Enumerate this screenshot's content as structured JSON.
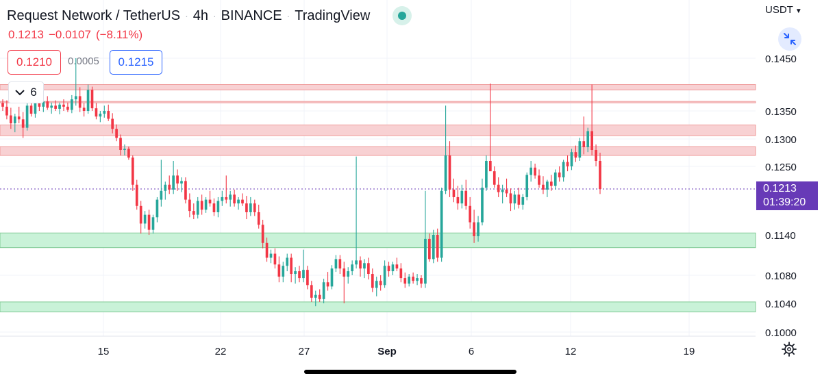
{
  "header": {
    "symbol": "Request Network / TetherUS",
    "interval": "4h",
    "exchange": "BINANCE",
    "source": "TradingView",
    "last": "0.1213",
    "change": "−0.0107",
    "change_pct": "(−8.11%)",
    "bid": "0.1210",
    "spread": "0.0005",
    "ask": "0.1215",
    "indicator_count": "6",
    "currency": "USDT"
  },
  "price_label": {
    "price": "0.1213",
    "countdown": "01:39:20"
  },
  "colors": {
    "up": "#26a69a",
    "down": "#f23645",
    "resistance_zone": "#f8d1d3",
    "support_zone": "#c9f2d8",
    "price_label": "#673ab7"
  },
  "chart_data": {
    "type": "candlestick",
    "y_axis_ticks": [
      "0.1450",
      "0.1350",
      "0.1300",
      "0.1250",
      "0.1140",
      "0.1080",
      "0.1040",
      "0.1000"
    ],
    "x_axis_ticks": [
      "15",
      "22",
      "27",
      "Sep",
      "6",
      "12",
      "19"
    ],
    "ylim": [
      0.1,
      0.145
    ],
    "last_price": 0.1213,
    "zones": [
      {
        "kind": "resistance",
        "low": 0.139,
        "high": 0.14
      },
      {
        "kind": "resistance",
        "low": 0.1366,
        "high": 0.1368
      },
      {
        "kind": "resistance",
        "low": 0.1306,
        "high": 0.1325
      },
      {
        "kind": "resistance",
        "low": 0.127,
        "high": 0.1286
      },
      {
        "kind": "support",
        "low": 0.1121,
        "high": 0.1143
      },
      {
        "kind": "support",
        "low": 0.1028,
        "high": 0.1042
      }
    ],
    "candles_ohlc": [
      [
        0.1365,
        0.1372,
        0.135,
        0.1358
      ],
      [
        0.1358,
        0.137,
        0.1335,
        0.1342
      ],
      [
        0.1342,
        0.1356,
        0.1318,
        0.1328
      ],
      [
        0.1328,
        0.1345,
        0.1312,
        0.134
      ],
      [
        0.134,
        0.1358,
        0.1328,
        0.1335
      ],
      [
        0.1335,
        0.1348,
        0.1302,
        0.132
      ],
      [
        0.132,
        0.1368,
        0.1315,
        0.136
      ],
      [
        0.136,
        0.1372,
        0.134,
        0.1345
      ],
      [
        0.1345,
        0.138,
        0.1338,
        0.1372
      ],
      [
        0.1372,
        0.138,
        0.135,
        0.1358
      ],
      [
        0.1358,
        0.1375,
        0.1348,
        0.1368
      ],
      [
        0.1368,
        0.1378,
        0.1352,
        0.1356
      ],
      [
        0.1356,
        0.1366,
        0.1345,
        0.136
      ],
      [
        0.136,
        0.137,
        0.135,
        0.1354
      ],
      [
        0.1354,
        0.1366,
        0.1344,
        0.1362
      ],
      [
        0.1362,
        0.1372,
        0.135,
        0.1358
      ],
      [
        0.1358,
        0.1366,
        0.1348,
        0.1352
      ],
      [
        0.1352,
        0.138,
        0.1346,
        0.1372
      ],
      [
        0.1372,
        0.145,
        0.136,
        0.1378
      ],
      [
        0.1378,
        0.1395,
        0.1348,
        0.1356
      ],
      [
        0.1356,
        0.1365,
        0.134,
        0.135
      ],
      [
        0.135,
        0.14,
        0.1345,
        0.139
      ],
      [
        0.139,
        0.1396,
        0.135,
        0.1355
      ],
      [
        0.1355,
        0.1365,
        0.1335,
        0.134
      ],
      [
        0.134,
        0.135,
        0.133,
        0.1345
      ],
      [
        0.1345,
        0.136,
        0.1338,
        0.135
      ],
      [
        0.135,
        0.1362,
        0.1332,
        0.1336
      ],
      [
        0.1336,
        0.1346,
        0.131,
        0.1318
      ],
      [
        0.1318,
        0.1326,
        0.1296,
        0.1302
      ],
      [
        0.1302,
        0.1308,
        0.127,
        0.128
      ],
      [
        0.128,
        0.129,
        0.127,
        0.1282
      ],
      [
        0.1282,
        0.1286,
        0.1262,
        0.1266
      ],
      [
        0.1266,
        0.127,
        0.121,
        0.122
      ],
      [
        0.122,
        0.1228,
        0.118,
        0.1186
      ],
      [
        0.1186,
        0.1194,
        0.1142,
        0.1158
      ],
      [
        0.1158,
        0.1178,
        0.115,
        0.1172
      ],
      [
        0.1172,
        0.118,
        0.114,
        0.1148
      ],
      [
        0.1148,
        0.1172,
        0.1142,
        0.1168
      ],
      [
        0.1168,
        0.12,
        0.116,
        0.1196
      ],
      [
        0.1196,
        0.1262,
        0.1185,
        0.121
      ],
      [
        0.121,
        0.1225,
        0.1196,
        0.122
      ],
      [
        0.122,
        0.1235,
        0.1205,
        0.1212
      ],
      [
        0.1212,
        0.126,
        0.1205,
        0.1235
      ],
      [
        0.1235,
        0.1245,
        0.121,
        0.1222
      ],
      [
        0.1222,
        0.1232,
        0.1208,
        0.1226
      ],
      [
        0.1226,
        0.1232,
        0.119,
        0.1196
      ],
      [
        0.1196,
        0.1206,
        0.1168,
        0.1178
      ],
      [
        0.1178,
        0.119,
        0.1165,
        0.1172
      ],
      [
        0.1172,
        0.12,
        0.1166,
        0.1194
      ],
      [
        0.1194,
        0.1204,
        0.1172,
        0.118
      ],
      [
        0.118,
        0.12,
        0.1175,
        0.1196
      ],
      [
        0.1196,
        0.121,
        0.1185,
        0.119
      ],
      [
        0.119,
        0.1198,
        0.117,
        0.1176
      ],
      [
        0.1176,
        0.12,
        0.1168,
        0.1194
      ],
      [
        0.1194,
        0.121,
        0.1186,
        0.12
      ],
      [
        0.12,
        0.1235,
        0.119,
        0.1196
      ],
      [
        0.1196,
        0.121,
        0.1185,
        0.1204
      ],
      [
        0.1204,
        0.1212,
        0.1185,
        0.119
      ],
      [
        0.119,
        0.12,
        0.118,
        0.1196
      ],
      [
        0.1196,
        0.1206,
        0.1186,
        0.119
      ],
      [
        0.119,
        0.1202,
        0.1165,
        0.1176
      ],
      [
        0.1176,
        0.12,
        0.117,
        0.119
      ],
      [
        0.119,
        0.1196,
        0.117,
        0.1176
      ],
      [
        0.1176,
        0.1188,
        0.115,
        0.1156
      ],
      [
        0.1156,
        0.1164,
        0.112,
        0.1128
      ],
      [
        0.1128,
        0.1136,
        0.11,
        0.1106
      ],
      [
        0.1106,
        0.1118,
        0.1098,
        0.1112
      ],
      [
        0.1112,
        0.112,
        0.109,
        0.1096
      ],
      [
        0.1096,
        0.1108,
        0.107,
        0.1078
      ],
      [
        0.1078,
        0.11,
        0.107,
        0.1094
      ],
      [
        0.1094,
        0.1112,
        0.1086,
        0.1106
      ],
      [
        0.1106,
        0.1112,
        0.107,
        0.1082
      ],
      [
        0.1082,
        0.1092,
        0.1068,
        0.1086
      ],
      [
        0.1086,
        0.1094,
        0.107,
        0.1076
      ],
      [
        0.1076,
        0.1118,
        0.107,
        0.1088
      ],
      [
        0.1088,
        0.1094,
        0.106,
        0.1066
      ],
      [
        0.1066,
        0.1072,
        0.1042,
        0.1048
      ],
      [
        0.1048,
        0.1058,
        0.1036,
        0.1052
      ],
      [
        0.1052,
        0.106,
        0.1042,
        0.1046
      ],
      [
        0.1046,
        0.1075,
        0.104,
        0.107
      ],
      [
        0.107,
        0.1085,
        0.1058,
        0.1064
      ],
      [
        0.1064,
        0.1095,
        0.106,
        0.109
      ],
      [
        0.109,
        0.111,
        0.1085,
        0.1104
      ],
      [
        0.1104,
        0.111,
        0.1082,
        0.109
      ],
      [
        0.109,
        0.11,
        0.104,
        0.1078
      ],
      [
        0.1078,
        0.1092,
        0.1068,
        0.1086
      ],
      [
        0.1086,
        0.1102,
        0.108,
        0.1096
      ],
      [
        0.1096,
        0.1268,
        0.109,
        0.1102
      ],
      [
        0.1102,
        0.1108,
        0.1078,
        0.109
      ],
      [
        0.109,
        0.1104,
        0.1076,
        0.1098
      ],
      [
        0.1098,
        0.1106,
        0.1074,
        0.1082
      ],
      [
        0.1082,
        0.109,
        0.1056,
        0.1062
      ],
      [
        0.1062,
        0.1078,
        0.105,
        0.1072
      ],
      [
        0.1072,
        0.108,
        0.1058,
        0.1066
      ],
      [
        0.1066,
        0.1102,
        0.1062,
        0.1094
      ],
      [
        0.1094,
        0.11,
        0.1078,
        0.1086
      ],
      [
        0.1086,
        0.11,
        0.108,
        0.1096
      ],
      [
        0.1096,
        0.1106,
        0.1086,
        0.109
      ],
      [
        0.109,
        0.1098,
        0.107,
        0.1076
      ],
      [
        0.1076,
        0.1084,
        0.1062,
        0.1068
      ],
      [
        0.1068,
        0.1082,
        0.1064,
        0.1078
      ],
      [
        0.1078,
        0.1084,
        0.1068,
        0.1072
      ],
      [
        0.1072,
        0.1082,
        0.1066,
        0.1076
      ],
      [
        0.1076,
        0.108,
        0.1062,
        0.1068
      ],
      [
        0.1068,
        0.121,
        0.1062,
        0.1134
      ],
      [
        0.1134,
        0.1142,
        0.11,
        0.1104
      ],
      [
        0.1104,
        0.1148,
        0.1098,
        0.114
      ],
      [
        0.114,
        0.115,
        0.11,
        0.1106
      ],
      [
        0.1106,
        0.1215,
        0.11,
        0.121
      ],
      [
        0.121,
        0.136,
        0.1205,
        0.127
      ],
      [
        0.127,
        0.1296,
        0.12,
        0.1212
      ],
      [
        0.1212,
        0.123,
        0.1192,
        0.12
      ],
      [
        0.12,
        0.1218,
        0.118,
        0.119
      ],
      [
        0.119,
        0.122,
        0.1182,
        0.121
      ],
      [
        0.121,
        0.1228,
        0.118,
        0.1186
      ],
      [
        0.1186,
        0.12,
        0.115,
        0.116
      ],
      [
        0.116,
        0.118,
        0.1128,
        0.1138
      ],
      [
        0.1138,
        0.117,
        0.113,
        0.116
      ],
      [
        0.116,
        0.123,
        0.1155,
        0.1215
      ],
      [
        0.1215,
        0.127,
        0.121,
        0.126
      ],
      [
        0.126,
        0.1402,
        0.125,
        0.1242
      ],
      [
        0.1242,
        0.125,
        0.1215,
        0.122
      ],
      [
        0.122,
        0.1232,
        0.12,
        0.1208
      ],
      [
        0.1208,
        0.122,
        0.119,
        0.1212
      ],
      [
        0.1212,
        0.123,
        0.12,
        0.1206
      ],
      [
        0.1206,
        0.1214,
        0.1178,
        0.119
      ],
      [
        0.119,
        0.121,
        0.118,
        0.1204
      ],
      [
        0.1204,
        0.1215,
        0.1182,
        0.1188
      ],
      [
        0.1188,
        0.1205,
        0.118,
        0.12
      ],
      [
        0.12,
        0.124,
        0.1195,
        0.1236
      ],
      [
        0.1236,
        0.126,
        0.1225,
        0.1248
      ],
      [
        0.1248,
        0.1255,
        0.123,
        0.1235
      ],
      [
        0.1235,
        0.1245,
        0.1215,
        0.122
      ],
      [
        0.122,
        0.1234,
        0.1205,
        0.1212
      ],
      [
        0.1212,
        0.1228,
        0.12,
        0.1225
      ],
      [
        0.1225,
        0.1236,
        0.121,
        0.1218
      ],
      [
        0.1218,
        0.1245,
        0.1212,
        0.124
      ],
      [
        0.124,
        0.125,
        0.1225,
        0.1232
      ],
      [
        0.1232,
        0.1262,
        0.1225,
        0.1258
      ],
      [
        0.1258,
        0.127,
        0.1242,
        0.125
      ],
      [
        0.125,
        0.1282,
        0.1244,
        0.1276
      ],
      [
        0.1276,
        0.1288,
        0.1258,
        0.1266
      ],
      [
        0.1266,
        0.1302,
        0.126,
        0.1296
      ],
      [
        0.1296,
        0.134,
        0.1272,
        0.1285
      ],
      [
        0.1285,
        0.132,
        0.1276,
        0.1314
      ],
      [
        0.1314,
        0.14,
        0.127,
        0.128
      ],
      [
        0.128,
        0.129,
        0.125,
        0.126
      ],
      [
        0.126,
        0.1275,
        0.1205,
        0.1213
      ]
    ]
  }
}
